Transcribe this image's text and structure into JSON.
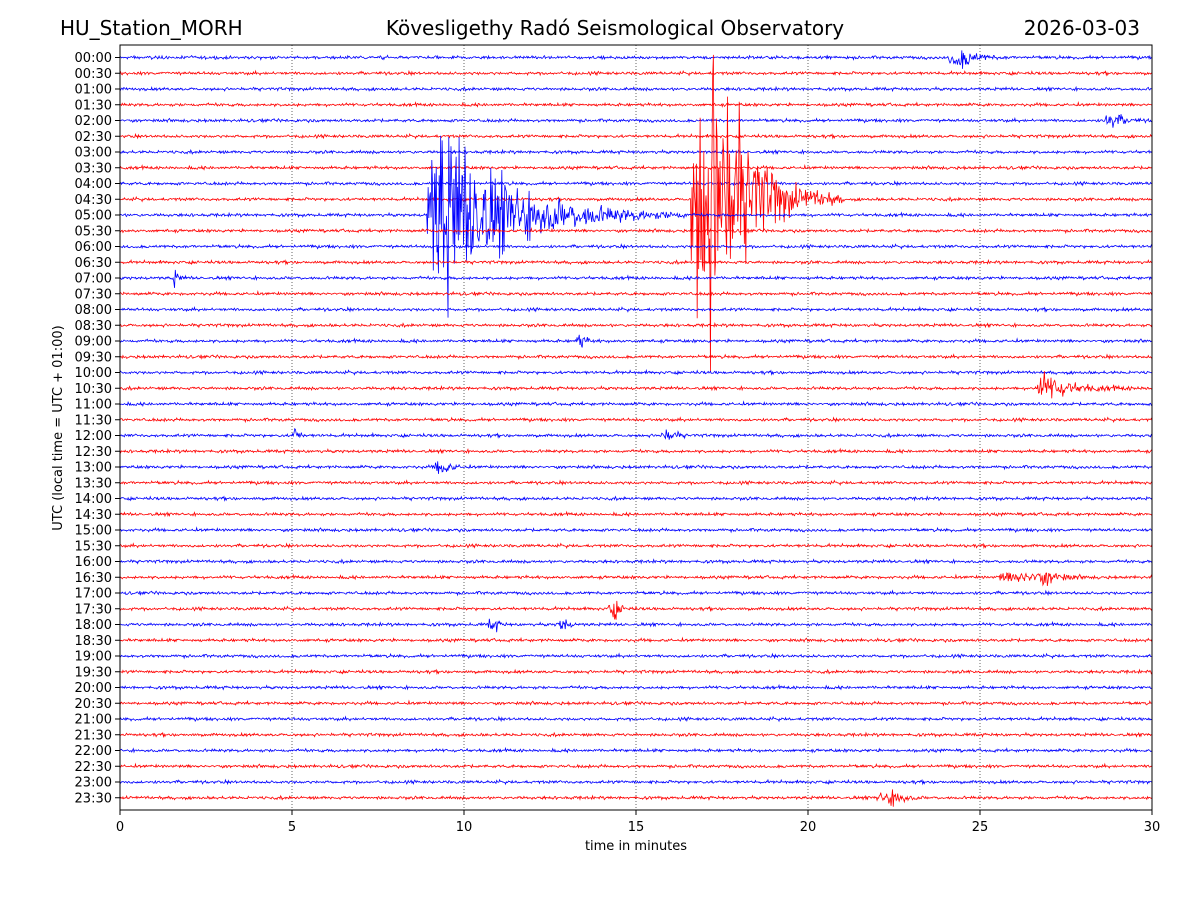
{
  "header": {
    "station": "HU_Station_MORH",
    "observatory": "Kövesligethy Radó Seismological Observatory",
    "date": "2026-03-03"
  },
  "chart_data": {
    "type": "line",
    "title": "Kövesligethy Radó Seismological Observatory",
    "xlabel": "time in minutes",
    "ylabel": "UTC (local time = UTC + 01:00)",
    "xlim": [
      0,
      30
    ],
    "xticks": [
      0,
      5,
      10,
      15,
      20,
      25,
      30
    ],
    "grid": "vertical dotted at x ticks",
    "trace_colors": [
      "#0000ff",
      "#ff0000"
    ],
    "rows": [
      "00:00",
      "00:30",
      "01:00",
      "01:30",
      "02:00",
      "02:30",
      "03:00",
      "03:30",
      "04:00",
      "04:30",
      "05:00",
      "05:30",
      "06:00",
      "06:30",
      "07:00",
      "07:30",
      "08:00",
      "08:30",
      "09:00",
      "09:30",
      "10:00",
      "10:30",
      "11:00",
      "11:30",
      "12:00",
      "12:30",
      "13:00",
      "13:30",
      "14:00",
      "14:30",
      "15:00",
      "15:30",
      "16:00",
      "16:30",
      "17:00",
      "17:30",
      "18:00",
      "18:30",
      "19:00",
      "19:30",
      "20:00",
      "20:30",
      "21:00",
      "21:30",
      "22:00",
      "22:30",
      "23:00",
      "23:30"
    ],
    "events": [
      {
        "row": "05:00",
        "start_min": 8.9,
        "peak_min": 9.3,
        "end_min": 16.5,
        "peak_amp": 5.0,
        "note": "large earthquake, blue trace"
      },
      {
        "row": "04:30",
        "start_min": 16.6,
        "peak_min": 17.2,
        "end_min": 21.0,
        "peak_amp": 8.5,
        "note": "large earthquake, red trace"
      },
      {
        "row": "00:00",
        "start_min": 24.1,
        "peak_min": 24.5,
        "end_min": 26.0,
        "peak_amp": 0.5
      },
      {
        "row": "02:00",
        "start_min": 28.6,
        "peak_min": 28.8,
        "end_min": 30.0,
        "peak_amp": 0.5
      },
      {
        "row": "07:00",
        "start_min": 1.5,
        "peak_min": 1.6,
        "end_min": 2.0,
        "peak_amp": 0.4
      },
      {
        "row": "09:00",
        "start_min": 13.2,
        "peak_min": 13.4,
        "end_min": 14.0,
        "peak_amp": 0.35
      },
      {
        "row": "10:30",
        "start_min": 26.6,
        "peak_min": 26.8,
        "end_min": 30.0,
        "peak_amp": 0.7
      },
      {
        "row": "12:00",
        "start_min": 5.0,
        "peak_min": 5.1,
        "end_min": 5.5,
        "peak_amp": 0.4
      },
      {
        "row": "12:00",
        "start_min": 15.7,
        "peak_min": 16.0,
        "end_min": 16.7,
        "peak_amp": 0.3
      },
      {
        "row": "13:00",
        "start_min": 9.1,
        "peak_min": 9.4,
        "end_min": 10.2,
        "peak_amp": 0.4
      },
      {
        "row": "16:30",
        "start_min": 25.5,
        "peak_min": 27.0,
        "end_min": 28.5,
        "peak_amp": 0.35
      },
      {
        "row": "17:30",
        "start_min": 14.2,
        "peak_min": 14.4,
        "end_min": 15.0,
        "peak_amp": 0.5
      },
      {
        "row": "18:00",
        "start_min": 10.7,
        "peak_min": 10.9,
        "end_min": 11.3,
        "peak_amp": 0.35
      },
      {
        "row": "18:00",
        "start_min": 12.7,
        "peak_min": 12.9,
        "end_min": 13.4,
        "peak_amp": 0.4
      },
      {
        "row": "23:30",
        "start_min": 22.0,
        "peak_min": 22.6,
        "end_min": 23.5,
        "peak_amp": 0.4
      }
    ]
  }
}
